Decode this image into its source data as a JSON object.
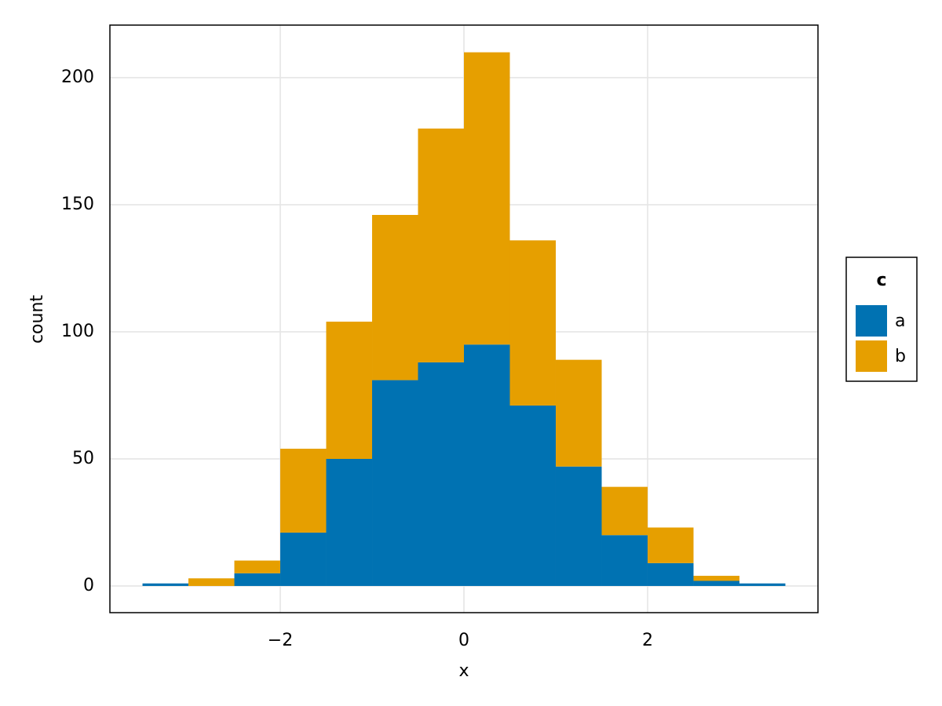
{
  "chart_data": {
    "type": "histogram",
    "x_label": "x",
    "y_label": "count",
    "bins": [
      -3.5,
      -3,
      -2.5,
      -2,
      -1.5,
      -1,
      -0.5,
      0,
      0.5,
      1,
      1.5,
      2,
      2.5,
      3,
      3.5
    ],
    "series": [
      {
        "name": "a",
        "color": "#0072b2",
        "values": [
          1,
          0,
          5,
          21,
          50,
          81,
          88,
          95,
          71,
          47,
          20,
          9,
          2,
          1
        ]
      },
      {
        "name": "b",
        "color": "#e69f00",
        "values": [
          0,
          3,
          5,
          33,
          54,
          65,
          92,
          115,
          65,
          42,
          19,
          14,
          2,
          0
        ]
      }
    ],
    "stacked": true,
    "legend_title": "c",
    "legend_position": "right",
    "xlim": [
      -3.855,
      3.855
    ],
    "ylim": [
      -10.5,
      220.7
    ],
    "xticks": [
      {
        "value": -2,
        "label": "−2"
      },
      0,
      2
    ],
    "yticks": [
      0,
      50,
      100,
      150,
      200
    ],
    "grid": true
  }
}
